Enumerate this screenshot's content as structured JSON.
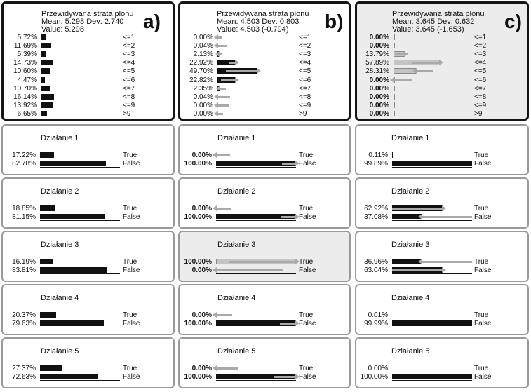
{
  "panels": [
    {
      "letter": "a)",
      "big": {
        "title": "Przewidywana strata plonu",
        "mean_dev": "Mean: 5.298 Dev: 2.740",
        "value": "Value: 5.298",
        "rows": [
          {
            "pct": "5.72%",
            "label": "<=1",
            "value": 5.72
          },
          {
            "pct": "11.69%",
            "label": "<=2",
            "value": 11.69
          },
          {
            "pct": "5.39%",
            "label": "<=3",
            "value": 5.39
          },
          {
            "pct": "14.73%",
            "label": "<=4",
            "value": 14.73
          },
          {
            "pct": "10.60%",
            "label": "<=5",
            "value": 10.6
          },
          {
            "pct": "4.47%",
            "label": "<=6",
            "value": 4.47
          },
          {
            "pct": "10.70%",
            "label": "<=7",
            "value": 10.7
          },
          {
            "pct": "16.14%",
            "label": "<=8",
            "value": 16.14
          },
          {
            "pct": "13.92%",
            "label": "<=9",
            "value": 13.92
          },
          {
            "pct": "6.65%",
            "label": ">9",
            "value": 6.65
          }
        ]
      },
      "actions": [
        {
          "title": "Działanie 1",
          "true_pct": "17.22%",
          "false_pct": "82.78%",
          "true_val": 17.22,
          "false_val": 82.78
        },
        {
          "title": "Działanie 2",
          "true_pct": "18.85%",
          "false_pct": "81.15%",
          "true_val": 18.85,
          "false_val": 81.15
        },
        {
          "title": "Działanie 3",
          "true_pct": "16.19%",
          "false_pct": "83.81%",
          "true_val": 16.19,
          "false_val": 83.81
        },
        {
          "title": "Działanie 4",
          "true_pct": "20.37%",
          "false_pct": "79.63%",
          "true_val": 20.37,
          "false_val": 79.63
        },
        {
          "title": "Działanie 5",
          "true_pct": "27.37%",
          "false_pct": "72.63%",
          "true_val": 27.37,
          "false_val": 72.63
        }
      ]
    },
    {
      "letter": "b)",
      "big": {
        "title": "Przewidywana strata plonu",
        "mean_dev": "Mean: 4.503 Dev: 0.803",
        "value": "Value: 4.503 (-0.794)",
        "rows": [
          {
            "pct": "0.00%",
            "label": "<=1",
            "value": 0.0
          },
          {
            "pct": "0.04%",
            "label": "<=2",
            "value": 0.04
          },
          {
            "pct": "2.13%",
            "label": "<=3",
            "value": 2.13
          },
          {
            "pct": "22.92%",
            "label": "<=4",
            "value": 22.92
          },
          {
            "pct": "49.70%",
            "label": "<=5",
            "value": 49.7
          },
          {
            "pct": "22.82%",
            "label": "<=6",
            "value": 22.82
          },
          {
            "pct": "2.35%",
            "label": "<=7",
            "value": 2.35
          },
          {
            "pct": "0.04%",
            "label": "<=8",
            "value": 0.04
          },
          {
            "pct": "0.00%",
            "label": "<=9",
            "value": 0.0
          },
          {
            "pct": "0.00%",
            "label": ">9",
            "value": 0.0
          }
        ]
      },
      "actions": [
        {
          "title": "Działanie 1",
          "true_pct": "0.00%",
          "false_pct": "100.00%",
          "true_val": 0,
          "false_val": 100,
          "bold": true
        },
        {
          "title": "Działanie 2",
          "true_pct": "0.00%",
          "false_pct": "100.00%",
          "true_val": 0,
          "false_val": 100,
          "bold": true
        },
        {
          "title": "Działanie 3",
          "true_pct": "100.00%",
          "false_pct": "0.00%",
          "true_val": 100,
          "false_val": 0,
          "bold": true,
          "selected": true
        },
        {
          "title": "Działanie 4",
          "true_pct": "0.00%",
          "false_pct": "100.00%",
          "true_val": 0,
          "false_val": 100,
          "bold": true
        },
        {
          "title": "Działanie 5",
          "true_pct": "0.00%",
          "false_pct": "100.00%",
          "true_val": 0,
          "false_val": 100,
          "bold": true
        }
      ]
    },
    {
      "letter": "c)",
      "big": {
        "title": "Przewidywana strata plonu",
        "mean_dev": "Mean: 3.645 Dev: 0.632",
        "value": "Value: 3.645 (-1.653)",
        "rows": [
          {
            "pct": "0.00%",
            "label": "<=1",
            "value": 0.0,
            "bold": true
          },
          {
            "pct": "0.00%",
            "label": "<=2",
            "value": 0.0,
            "bold": true
          },
          {
            "pct": "13.79%",
            "label": "<=3",
            "value": 13.79
          },
          {
            "pct": "57.89%",
            "label": "<=4",
            "value": 57.89
          },
          {
            "pct": "28.31%",
            "label": "<=5",
            "value": 28.31
          },
          {
            "pct": "0.00%",
            "label": "<=6",
            "value": 0.0,
            "bold": true
          },
          {
            "pct": "0.00%",
            "label": "<=7",
            "value": 0.0,
            "bold": true
          },
          {
            "pct": "0.00%",
            "label": "<=8",
            "value": 0.0,
            "bold": true
          },
          {
            "pct": "0.00%",
            "label": "<=9",
            "value": 0.0,
            "bold": true
          },
          {
            "pct": "0.00%",
            "label": ">9",
            "value": 0.0,
            "bold": true
          }
        ]
      },
      "actions": [
        {
          "title": "Działanie 1",
          "true_pct": "0.11%",
          "false_pct": "99.89%",
          "true_val": 0.11,
          "false_val": 99.89
        },
        {
          "title": "Działanie 2",
          "true_pct": "62.92%",
          "false_pct": "37.08%",
          "true_val": 62.92,
          "false_val": 37.08
        },
        {
          "title": "Działanie 3",
          "true_pct": "36.96%",
          "false_pct": "63.04%",
          "true_val": 36.96,
          "false_val": 63.04
        },
        {
          "title": "Działanie 4",
          "true_pct": "0.01%",
          "false_pct": "99.99%",
          "true_val": 0.01,
          "false_val": 99.99
        },
        {
          "title": "Działanie 5",
          "true_pct": "0.00%",
          "false_pct": "100.00%",
          "true_val": 0.0,
          "false_val": 100.0
        }
      ]
    }
  ],
  "labels": {
    "true": "True",
    "false": "False"
  },
  "colors": {
    "bar_dark": "#111111",
    "bar_light": "#c4c4c4",
    "arrow": "#a9a9a9",
    "highlight": "#ececec"
  }
}
